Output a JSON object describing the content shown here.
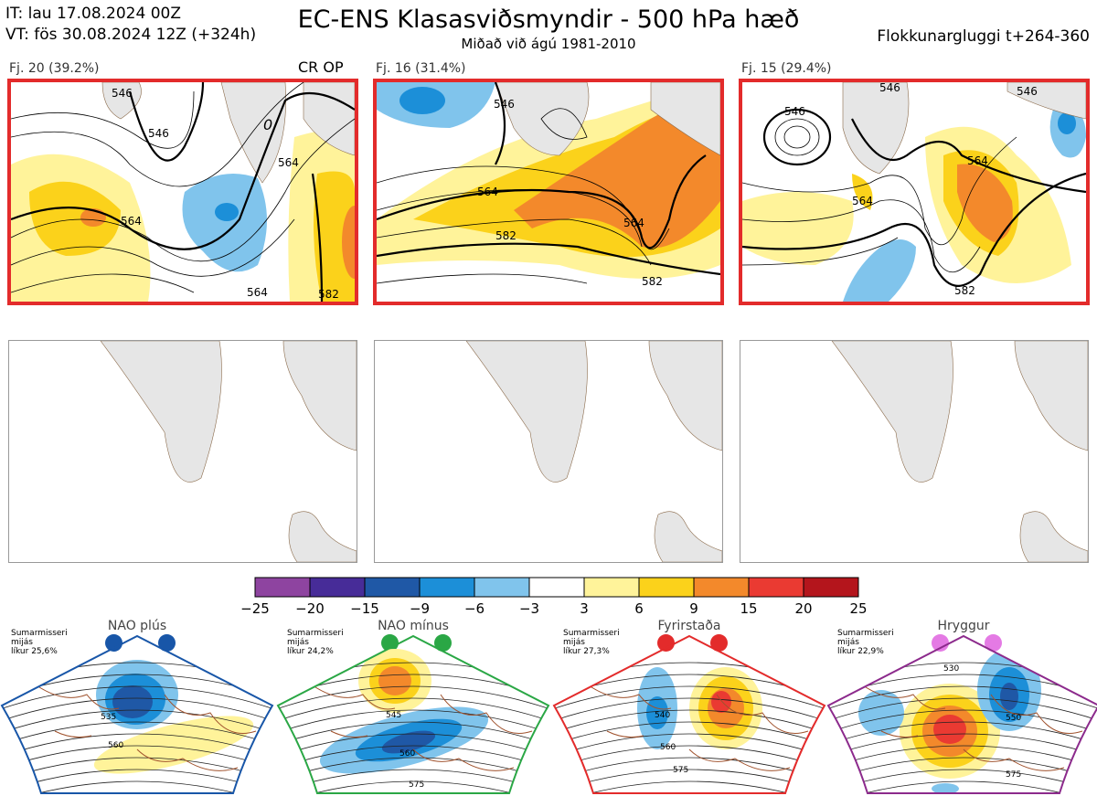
{
  "header": {
    "line1": "IT: lau 17.08.2024 00Z",
    "line2": "VT: fös 30.08.2024 12Z  (+324h)",
    "title": "EC-ENS Klasasviðsmyndir - 500 hPa hæð",
    "subtitle": "Miðað við ágú 1981-2010",
    "right": "Flokkunargluggi t+264-360"
  },
  "clusters": [
    {
      "label": "Fj. 20 (39.2%)",
      "members": 20,
      "percent": 39.2,
      "tag": "CR OP",
      "selected": true,
      "contours": [
        "546",
        "546",
        "564",
        "564",
        "564",
        "582",
        "0"
      ]
    },
    {
      "label": "Fj. 16 (31.4%)",
      "members": 16,
      "percent": 31.4,
      "tag": "",
      "selected": true,
      "contours": [
        "546",
        "564",
        "582",
        "564",
        "582"
      ]
    },
    {
      "label": "Fj. 15 (29.4%)",
      "members": 15,
      "percent": 29.4,
      "tag": "",
      "selected": true,
      "contours": [
        "546",
        "546",
        "564",
        "564",
        "582",
        "546"
      ]
    }
  ],
  "colorbar": {
    "ticks": [
      "−25",
      "−20",
      "−15",
      "−9",
      "−6",
      "−3",
      "3",
      "6",
      "9",
      "15",
      "20",
      "25"
    ],
    "colors": [
      "#8e44a0",
      "#472c98",
      "#1f58a6",
      "#1c8fd8",
      "#80c4ec",
      "#ffffff",
      "#fff39a",
      "#fbd21b",
      "#f3892b",
      "#ea3a32",
      "#b4151c"
    ]
  },
  "regimes": [
    {
      "title": "NAO plús",
      "info": [
        "Sumarmisseri",
        "mijás",
        "líkur 25,6%"
      ],
      "probability": 25.6,
      "color": "#1856a8",
      "dot_color": "#1856a8",
      "contours": [
        "535",
        "560"
      ]
    },
    {
      "title": "NAO mínus",
      "info": [
        "Sumarmisseri",
        "mijás",
        "líkur 24,2%"
      ],
      "probability": 24.2,
      "color": "#2aa745",
      "dot_color": "#2aa745",
      "contours": [
        "545",
        "560",
        "575"
      ]
    },
    {
      "title": "Fyrirstaða",
      "info": [
        "Sumarmisseri",
        "mijás",
        "líkur 27,3%"
      ],
      "probability": 27.3,
      "color": "#e32b2b",
      "dot_color": "#e32b2b",
      "contours": [
        "540",
        "560",
        "575"
      ]
    },
    {
      "title": "Hryggur",
      "info": [
        "Sumarmisseri",
        "mijás",
        "líkur 22,9%"
      ],
      "probability": 22.9,
      "color": "#8c2a8c",
      "dot_color": "#e47ae4",
      "contours": [
        "530",
        "550",
        "575"
      ]
    }
  ]
}
